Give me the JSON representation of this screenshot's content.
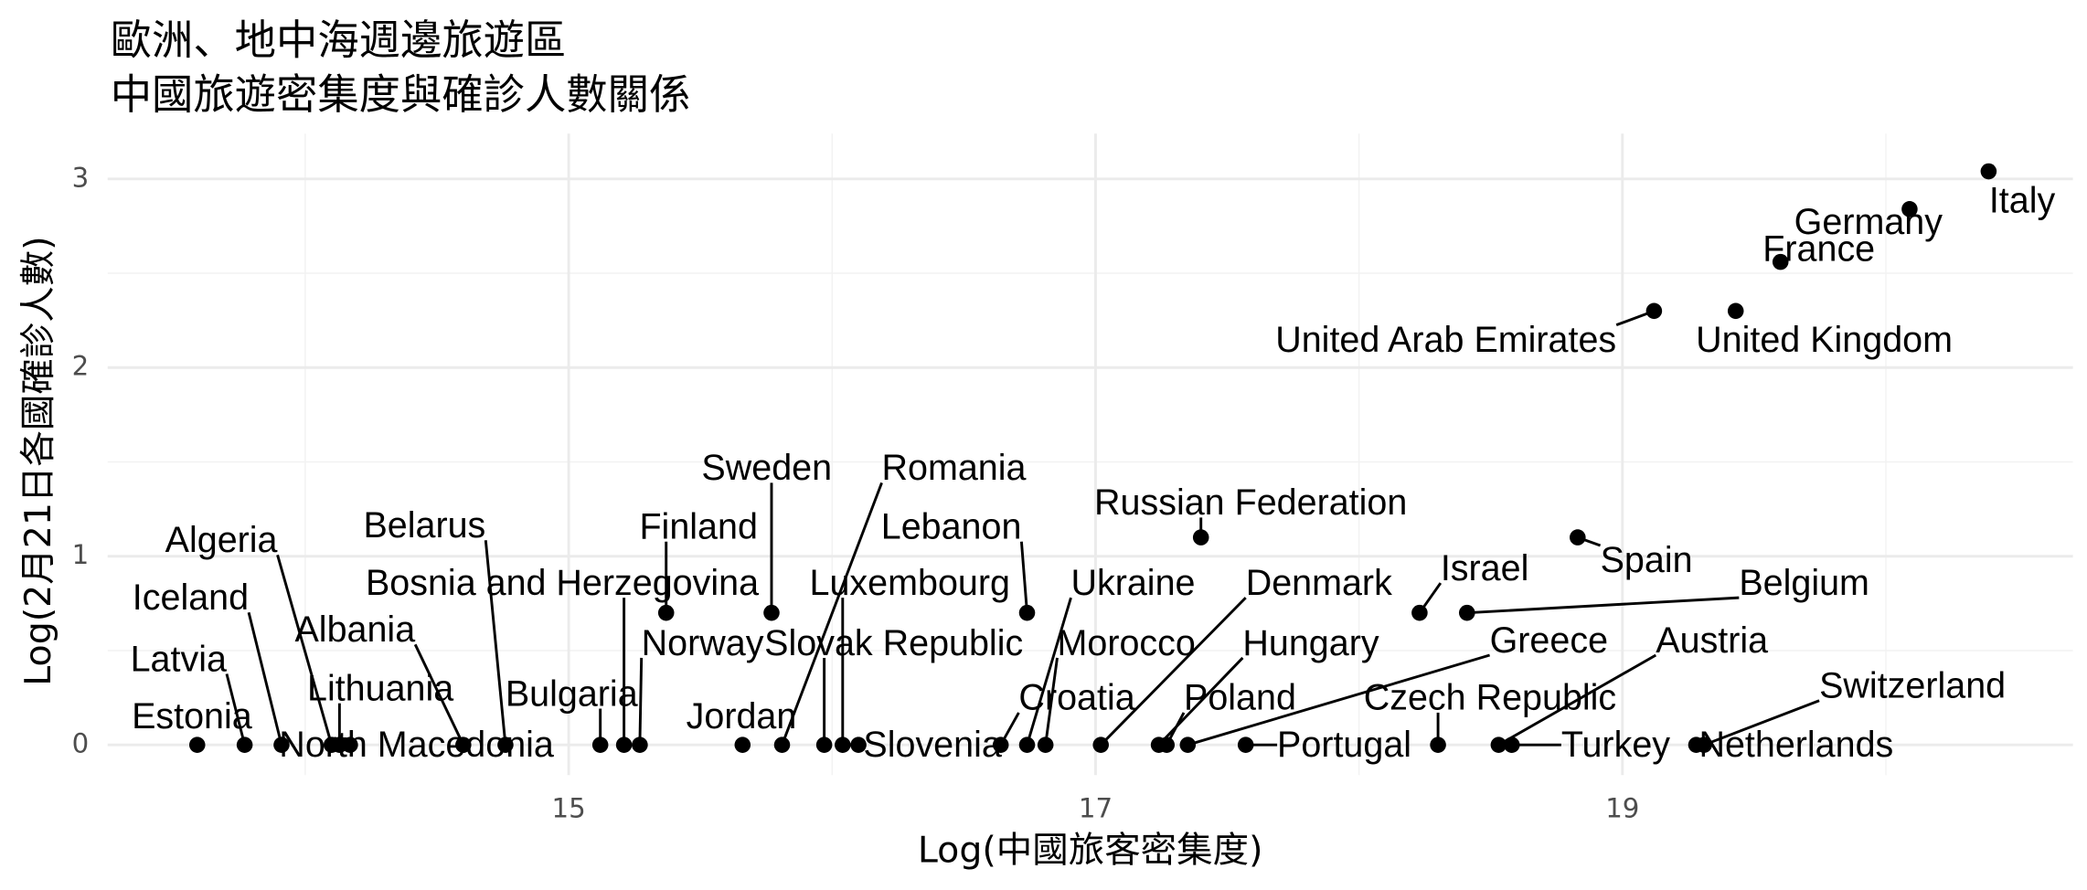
{
  "chart_data": {
    "type": "scatter",
    "title": "歐洲、地中海週邊旅遊區",
    "subtitle": "中國旅遊密集度與確診人數關係",
    "x_label": "Log(中國旅客密集度)",
    "y_label": "Log(2月21日各國確診人數)",
    "color": "#000000",
    "grid": true,
    "xlim": [
      13.25,
      20.71
    ],
    "ylim": [
      -0.16,
      3.24
    ],
    "xticks": [
      15,
      17,
      19
    ],
    "yticks": [
      0,
      1,
      2,
      3
    ],
    "xminor": [
      14,
      16,
      18,
      20
    ],
    "yminor": [
      0.5,
      1.5,
      2.5
    ],
    "labels": [
      "Italy",
      "Germany",
      "France",
      "United Arab Emirates",
      "United Kingdom",
      "Russian Federation",
      "Spain",
      "Israel",
      "Belgium",
      "Finland",
      "Sweden",
      "Lebanon",
      "Estonia",
      "Latvia",
      "Iceland",
      "Algeria",
      "Lithuania",
      "North Macedonia",
      "Albania",
      "Belarus",
      "Bulgaria",
      "Bosnia and Herzegovina",
      "Norway",
      "Jordan",
      "Romania",
      "Slovak Republic",
      "Luxembourg",
      "Slovenia",
      "Croatia",
      "Ukraine",
      "Morocco",
      "Denmark",
      "Hungary",
      "Poland",
      "Greece",
      "Portugal",
      "Czech Republic",
      "Austria",
      "Turkey",
      "Switzerland",
      "Netherlands"
    ],
    "x": [
      20.39,
      20.09,
      19.6,
      19.12,
      19.43,
      17.4,
      18.83,
      18.23,
      18.41,
      15.37,
      15.77,
      16.74,
      13.59,
      13.77,
      13.91,
      14.1,
      14.13,
      14.17,
      14.6,
      14.76,
      15.12,
      15.21,
      15.27,
      15.66,
      15.81,
      15.97,
      16.04,
      16.1,
      16.64,
      16.74,
      16.81,
      17.02,
      17.24,
      17.27,
      17.35,
      17.57,
      18.3,
      18.53,
      18.58,
      19.31,
      19.28
    ],
    "values": [
      3.04,
      2.84,
      2.56,
      2.3,
      2.3,
      1.1,
      1.1,
      0.7,
      0.7,
      0.7,
      0.7,
      0.7,
      0,
      0,
      0,
      0,
      0,
      0,
      0,
      0,
      0,
      0,
      0,
      0,
      0,
      0,
      0,
      0,
      0,
      0,
      0,
      0,
      0,
      0,
      0,
      0,
      0,
      0,
      0,
      0,
      0
    ]
  }
}
